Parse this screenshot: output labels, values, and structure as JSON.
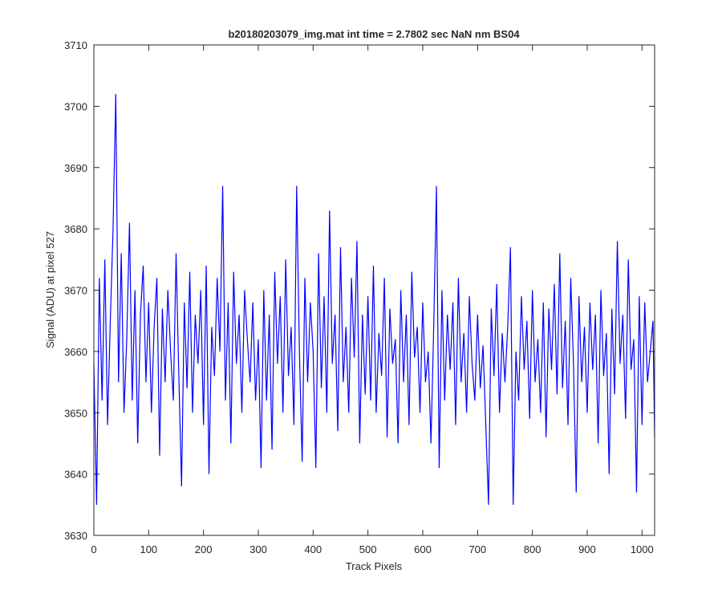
{
  "chart_data": {
    "type": "line",
    "title": "b20180203079_img.mat int time = 2.7802 sec  NaN nm BS04",
    "xlabel": "Track Pixels",
    "ylabel": "Signal (ADU) at pixel 527",
    "color": "#0000ff",
    "xlim": [
      0,
      1023
    ],
    "ylim": [
      3630,
      3710
    ],
    "xticks": [
      0,
      100,
      200,
      300,
      400,
      500,
      600,
      700,
      800,
      900,
      1000
    ],
    "yticks": [
      3630,
      3640,
      3650,
      3660,
      3670,
      3680,
      3690,
      3700,
      3710
    ],
    "grid": false,
    "x": [
      0,
      5,
      10,
      15,
      20,
      25,
      30,
      35,
      40,
      45,
      50,
      55,
      60,
      65,
      70,
      75,
      80,
      85,
      90,
      95,
      100,
      105,
      110,
      115,
      120,
      125,
      130,
      135,
      140,
      145,
      150,
      155,
      160,
      165,
      170,
      175,
      180,
      185,
      190,
      195,
      200,
      205,
      210,
      215,
      220,
      225,
      230,
      235,
      240,
      245,
      250,
      255,
      260,
      265,
      270,
      275,
      280,
      285,
      290,
      295,
      300,
      305,
      310,
      315,
      320,
      325,
      330,
      335,
      340,
      345,
      350,
      355,
      360,
      365,
      370,
      375,
      380,
      385,
      390,
      395,
      400,
      405,
      410,
      415,
      420,
      425,
      430,
      435,
      440,
      445,
      450,
      455,
      460,
      465,
      470,
      475,
      480,
      485,
      490,
      495,
      500,
      505,
      510,
      515,
      520,
      525,
      530,
      535,
      540,
      545,
      550,
      555,
      560,
      565,
      570,
      575,
      580,
      585,
      590,
      595,
      600,
      605,
      610,
      615,
      620,
      625,
      630,
      635,
      640,
      645,
      650,
      655,
      660,
      665,
      670,
      675,
      680,
      685,
      690,
      695,
      700,
      705,
      710,
      715,
      720,
      725,
      730,
      735,
      740,
      745,
      750,
      755,
      760,
      765,
      770,
      775,
      780,
      785,
      790,
      795,
      800,
      805,
      810,
      815,
      820,
      825,
      830,
      835,
      840,
      845,
      850,
      855,
      860,
      865,
      870,
      875,
      880,
      885,
      890,
      895,
      900,
      905,
      910,
      915,
      920,
      925,
      930,
      935,
      940,
      945,
      950,
      955,
      960,
      965,
      970,
      975,
      980,
      985,
      990,
      995,
      1000,
      1005,
      1010,
      1015,
      1020,
      1023
    ],
    "values": [
      3658,
      3635,
      3672,
      3652,
      3675,
      3648,
      3665,
      3680,
      3702,
      3655,
      3676,
      3650,
      3662,
      3681,
      3652,
      3670,
      3645,
      3666,
      3674,
      3655,
      3668,
      3650,
      3664,
      3672,
      3643,
      3667,
      3655,
      3670,
      3660,
      3652,
      3676,
      3656,
      3638,
      3668,
      3654,
      3673,
      3650,
      3666,
      3658,
      3670,
      3648,
      3674,
      3640,
      3664,
      3656,
      3672,
      3660,
      3687,
      3652,
      3668,
      3645,
      3673,
      3658,
      3666,
      3650,
      3670,
      3662,
      3655,
      3668,
      3652,
      3662,
      3641,
      3670,
      3652,
      3666,
      3644,
      3673,
      3658,
      3669,
      3650,
      3675,
      3656,
      3664,
      3648,
      3687,
      3660,
      3642,
      3672,
      3655,
      3668,
      3660,
      3641,
      3676,
      3654,
      3669,
      3650,
      3683,
      3658,
      3666,
      3647,
      3677,
      3655,
      3664,
      3650,
      3672,
      3659,
      3678,
      3645,
      3666,
      3653,
      3669,
      3652,
      3674,
      3650,
      3663,
      3656,
      3672,
      3646,
      3667,
      3658,
      3662,
      3645,
      3670,
      3655,
      3666,
      3648,
      3673,
      3659,
      3664,
      3650,
      3668,
      3655,
      3660,
      3645,
      3664,
      3687,
      3641,
      3670,
      3652,
      3666,
      3657,
      3668,
      3648,
      3672,
      3655,
      3663,
      3650,
      3669,
      3658,
      3652,
      3666,
      3654,
      3661,
      3648,
      3635,
      3667,
      3656,
      3671,
      3650,
      3663,
      3655,
      3664,
      3677,
      3635,
      3660,
      3652,
      3669,
      3657,
      3665,
      3649,
      3670,
      3655,
      3662,
      3650,
      3668,
      3646,
      3667,
      3657,
      3671,
      3653,
      3676,
      3654,
      3665,
      3648,
      3672,
      3658,
      3637,
      3669,
      3655,
      3664,
      3650,
      3668,
      3657,
      3666,
      3645,
      3670,
      3656,
      3663,
      3640,
      3667,
      3653,
      3678,
      3658,
      3666,
      3649,
      3675,
      3657,
      3662,
      3637,
      3669,
      3648,
      3668,
      3655,
      3660,
      3665,
      3646
    ]
  }
}
